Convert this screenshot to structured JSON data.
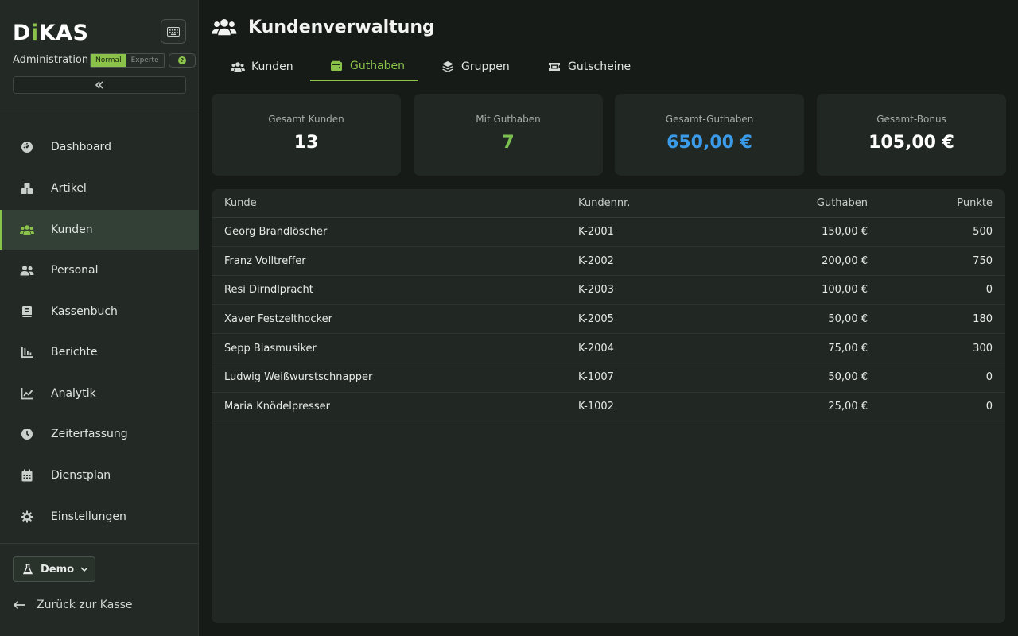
{
  "brand": {
    "logo_text_left": "D",
    "logo_text_dot": "i",
    "logo_text_right": "KAS",
    "subtitle": "Administration",
    "mode_normal": "Normal",
    "mode_expert": "Experte",
    "help": "?"
  },
  "sidebar": {
    "items": [
      {
        "label": "Dashboard",
        "icon": "gauge-icon"
      },
      {
        "label": "Artikel",
        "icon": "boxes-icon"
      },
      {
        "label": "Kunden",
        "icon": "users-icon",
        "active": true
      },
      {
        "label": "Personal",
        "icon": "user-group-icon"
      },
      {
        "label": "Kassenbuch",
        "icon": "book-icon"
      },
      {
        "label": "Berichte",
        "icon": "bar-chart-icon"
      },
      {
        "label": "Analytik",
        "icon": "line-chart-icon"
      },
      {
        "label": "Zeiterfassung",
        "icon": "clock-icon"
      },
      {
        "label": "Dienstplan",
        "icon": "calendar-icon"
      },
      {
        "label": "Einstellungen",
        "icon": "gear-icon"
      }
    ],
    "demo_label": "Demo",
    "back_label": "Zurück zur Kasse"
  },
  "header": {
    "title": "Kundenverwaltung"
  },
  "tabs": [
    {
      "label": "Kunden",
      "icon": "users-icon"
    },
    {
      "label": "Guthaben",
      "icon": "wallet-icon",
      "active": true
    },
    {
      "label": "Gruppen",
      "icon": "layers-icon"
    },
    {
      "label": "Gutscheine",
      "icon": "ticket-icon"
    }
  ],
  "stats": [
    {
      "label": "Gesamt Kunden",
      "value": "13",
      "color": "#ffffff"
    },
    {
      "label": "Mit Guthaben",
      "value": "7",
      "color": "#7cc04f"
    },
    {
      "label": "Gesamt-Guthaben",
      "value": "650,00 €",
      "color": "#3b9be8"
    },
    {
      "label": "Gesamt-Bonus",
      "value": "105,00 €",
      "color": "#ffffff"
    }
  ],
  "table": {
    "columns": [
      "Kunde",
      "Kundennr.",
      "Guthaben",
      "Punkte"
    ],
    "rows": [
      [
        "Georg Brandlöscher",
        "K-2001",
        "150,00 €",
        "500"
      ],
      [
        "Franz Volltreffer",
        "K-2002",
        "200,00 €",
        "750"
      ],
      [
        "Resi Dirndlpracht",
        "K-2003",
        "100,00 €",
        "0"
      ],
      [
        "Xaver Festzelthocker",
        "K-2005",
        "50,00 €",
        "180"
      ],
      [
        "Sepp Blasmusiker",
        "K-2004",
        "75,00 €",
        "300"
      ],
      [
        "Ludwig Weißwurstschnapper",
        "K-1007",
        "50,00 €",
        "0"
      ],
      [
        "Maria Knödelpresser",
        "K-1002",
        "25,00 €",
        "0"
      ]
    ]
  },
  "colors": {
    "accent": "#8bc34a",
    "blue": "#3b9be8",
    "green_value": "#7cc04f"
  }
}
